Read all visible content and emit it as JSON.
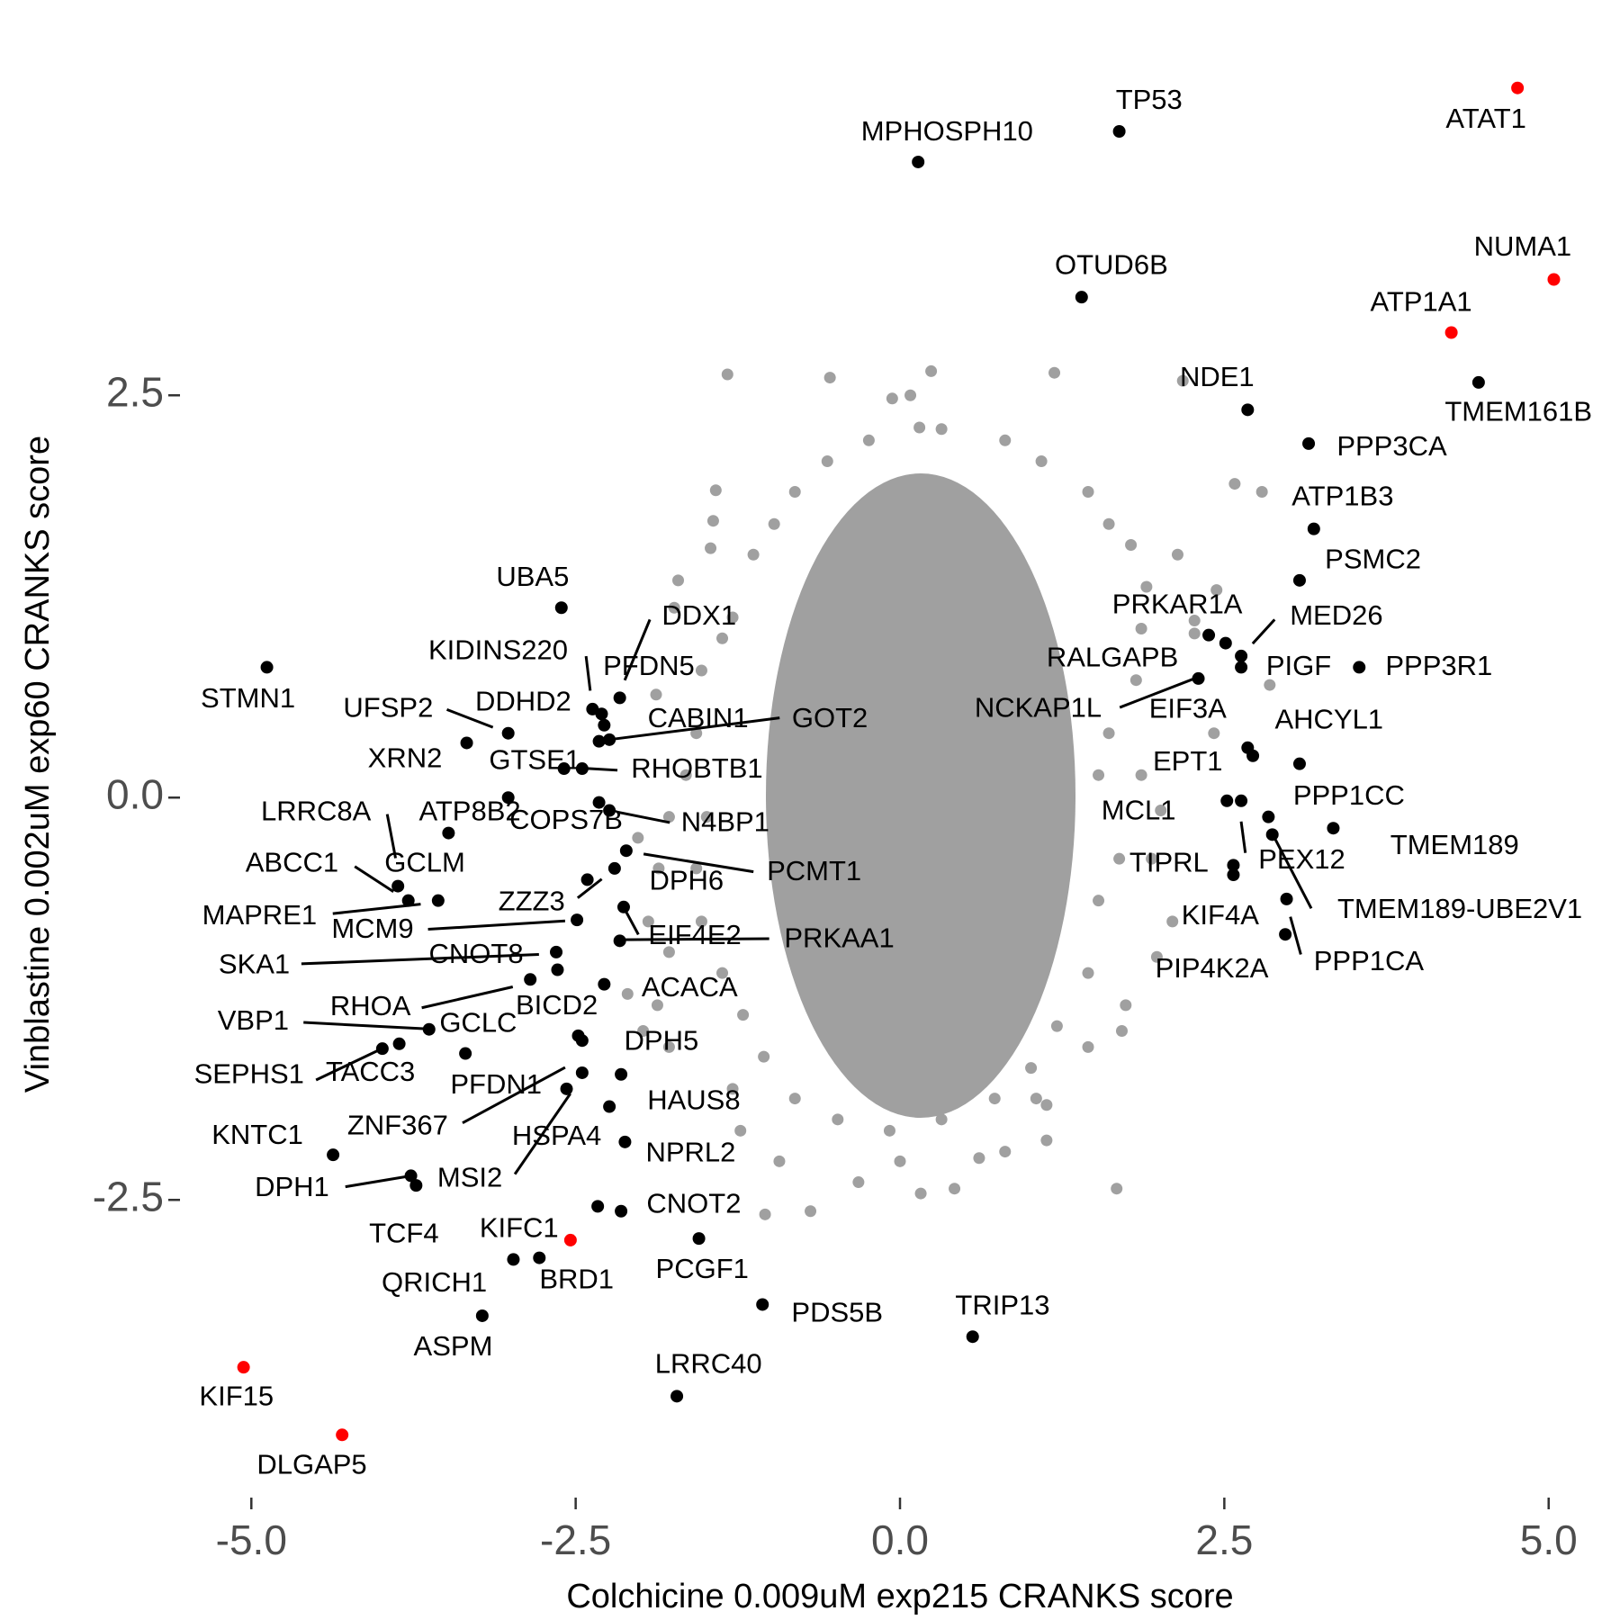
{
  "chart_data": {
    "type": "scatter",
    "x_label": "Colchicine 0.009uM exp215 CRANKS score",
    "y_label": "Vinblastine 0.002uM exp60 CRANKS score",
    "xlim": [
      -5.55,
      5.55
    ],
    "ylim": [
      -4.35,
      4.8
    ],
    "xticks": [
      {
        "value": -5,
        "label": "-5.0"
      },
      -2.5,
      {
        "value": 0,
        "label": "0.0"
      },
      2.5,
      {
        "value": 5,
        "label": "5.0"
      }
    ],
    "yticks": [
      -2.5,
      {
        "value": 0,
        "label": "0.0"
      },
      2.5
    ],
    "background": {
      "color": "#a0a0a0",
      "x": [
        -1.33,
        -0.54,
        0.24,
        1.19,
        -0.06,
        0.08,
        0.15,
        2.18,
        2.58,
        2.79,
        -1.42,
        -1.44,
        -1.46,
        -1.71,
        -1.74,
        -1.88,
        2.14,
        2.27,
        2.44,
        2.27,
        2.85,
        2.42,
        2.01,
        1.94,
        2.1,
        1.98,
        1.74,
        1.71,
        1.45,
        1.05,
        1.67,
        0.61,
        0.42,
        0,
        -0.32,
        -0.69,
        -1.04,
        -0.93,
        -1.23,
        -1.29,
        -1.78,
        -1.98,
        -1.87,
        -2.1,
        -1.78,
        -1.94,
        -1.86,
        -2.02,
        -1.78,
        -1.65,
        -1.57,
        -1.53,
        -1.37,
        -1.29,
        -1.13,
        -0.97,
        -0.81,
        -0.56,
        -0.24,
        0.32,
        0.81,
        1.09,
        1.45,
        1.61,
        1.78,
        1.9,
        1.86,
        1.82,
        1.61,
        1.53,
        1.86,
        1.69,
        1.53,
        1.45,
        1.21,
        1.01,
        0.73,
        0.32,
        -0.08,
        -0.48,
        -0.81,
        -1.05,
        -1.21,
        -1.37,
        -1.53,
        -1.57,
        -1.49,
        1.13,
        0.16,
        0.81,
        1.13
      ],
      "y": [
        2.63,
        2.61,
        2.65,
        2.64,
        2.48,
        2.5,
        2.3,
        2.59,
        1.95,
        1.9,
        1.91,
        1.72,
        1.55,
        1.35,
        1.18,
        0.64,
        1.51,
        1.1,
        1.29,
        1.02,
        0.7,
        0.4,
        -0.08,
        -0.38,
        -0.77,
        -0.99,
        -1.29,
        -1.45,
        -1.55,
        -1.87,
        -2.43,
        -2.24,
        -2.43,
        -2.26,
        -2.39,
        -2.57,
        -2.59,
        -2.26,
        -2.07,
        -1.81,
        -1.55,
        -1.45,
        -1.29,
        -1.22,
        -0.96,
        -0.77,
        -0.44,
        -0.25,
        -0.12,
        0.14,
        0.4,
        0.79,
        0.99,
        1.12,
        1.51,
        1.7,
        1.9,
        2.09,
        2.22,
        2.29,
        2.22,
        2.09,
        1.9,
        1.7,
        1.57,
        1.31,
        1.05,
        0.73,
        0.4,
        0.14,
        0.14,
        -0.38,
        -0.64,
        -1.09,
        -1.42,
        -1.68,
        -1.87,
        -2,
        -2.07,
        -2,
        -1.87,
        -1.61,
        -1.35,
        -1.09,
        -0.77,
        -0.44,
        -0.12,
        -2.13,
        -2.46,
        -2.2,
        -1.91
      ]
    },
    "labeled": [
      {
        "label": "ATAT1",
        "x": 4.76,
        "y": 4.41,
        "color": "#ff0000"
      },
      {
        "label": "TP53",
        "x": 1.69,
        "y": 4.14,
        "color": "#000000"
      },
      {
        "label": "MPHOSPH10",
        "x": 0.14,
        "y": 3.95,
        "color": "#000000"
      },
      {
        "label": "OTUD6B",
        "x": 1.4,
        "y": 3.11,
        "color": "#000000"
      },
      {
        "label": "NUMA1",
        "x": 5.04,
        "y": 3.22,
        "color": "#ff0000"
      },
      {
        "label": "ATP1A1",
        "x": 4.25,
        "y": 2.89,
        "color": "#ff0000"
      },
      {
        "label": "TMEM161B",
        "x": 4.46,
        "y": 2.58,
        "color": "#000000"
      },
      {
        "label": "NDE1",
        "x": 2.68,
        "y": 2.41,
        "color": "#000000"
      },
      {
        "label": "PPP3CA",
        "x": 3.15,
        "y": 2.2,
        "color": "#000000"
      },
      {
        "label": "ATP1B3",
        "x": 3.19,
        "y": 1.67,
        "color": "#000000"
      },
      {
        "label": "PSMC2",
        "x": 3.08,
        "y": 1.35,
        "color": "#000000"
      },
      {
        "label": "PRKAR1A",
        "x": 2.38,
        "y": 1.01,
        "color": "#000000"
      },
      {
        "label": "MED26",
        "x": 2.63,
        "y": 0.88,
        "color": "#000000"
      },
      {
        "label": "RALGAPB",
        "x": 2.51,
        "y": 0.96,
        "color": "#000000"
      },
      {
        "label": "PIGF",
        "x": 2.63,
        "y": 0.81,
        "color": "#000000"
      },
      {
        "label": "PPP3R1",
        "x": 3.54,
        "y": 0.81,
        "color": "#000000"
      },
      {
        "label": "NCKAP1L",
        "x": 2.3,
        "y": 0.74,
        "color": "#000000"
      },
      {
        "label": "EIF3A",
        "x": 2.68,
        "y": 0.31,
        "color": "#000000"
      },
      {
        "label": "AHCYL1",
        "x": 3.08,
        "y": 0.21,
        "color": "#000000"
      },
      {
        "label": "EPT1",
        "x": 2.72,
        "y": 0.26,
        "color": "#000000"
      },
      {
        "label": "PPP1CC",
        "x": 2.84,
        "y": -0.12,
        "color": "#000000"
      },
      {
        "label": "TMEM189",
        "x": 3.34,
        "y": -0.19,
        "color": "#000000"
      },
      {
        "label": "MCL1",
        "x": 2.52,
        "y": -0.02,
        "color": "#000000"
      },
      {
        "label": "TIPRL",
        "x": 2.57,
        "y": -0.42,
        "color": "#000000"
      },
      {
        "label": "PEX12",
        "x": 2.63,
        "y": -0.02,
        "color": "#000000"
      },
      {
        "label": "TMEM189-UBE2V1",
        "x": 2.87,
        "y": -0.23,
        "color": "#000000"
      },
      {
        "label": "KIF4A",
        "x": 2.57,
        "y": -0.48,
        "color": "#000000"
      },
      {
        "label": "PIP4K2A",
        "x": 2.98,
        "y": -0.63,
        "color": "#000000"
      },
      {
        "label": "PPP1CA",
        "x": 2.97,
        "y": -0.85,
        "color": "#000000"
      },
      {
        "label": "UBA5",
        "x": -2.61,
        "y": 1.18,
        "color": "#000000"
      },
      {
        "label": "STMN1",
        "x": -4.88,
        "y": 0.81,
        "color": "#000000"
      },
      {
        "label": "DDX1",
        "x": -2.16,
        "y": 0.62,
        "color": "#000000"
      },
      {
        "label": "KIDINS220",
        "x": -2.37,
        "y": 0.55,
        "color": "#000000"
      },
      {
        "label": "PFDN5",
        "x": -2.3,
        "y": 0.52,
        "color": "#000000"
      },
      {
        "label": "UFSP2",
        "x": -3.02,
        "y": 0.4,
        "color": "#000000"
      },
      {
        "label": "DDHD2",
        "x": -2.28,
        "y": 0.45,
        "color": "#000000"
      },
      {
        "label": "CABIN1",
        "x": -2.32,
        "y": 0.35,
        "color": "#000000"
      },
      {
        "label": "GOT2",
        "x": -2.24,
        "y": 0.36,
        "color": "#000000"
      },
      {
        "label": "XRN2",
        "x": -3.34,
        "y": 0.34,
        "color": "#000000"
      },
      {
        "label": "GTSE1",
        "x": -2.59,
        "y": 0.18,
        "color": "#000000"
      },
      {
        "label": "RHOBTB1",
        "x": -2.45,
        "y": 0.18,
        "color": "#000000"
      },
      {
        "label": "LRRC8A",
        "x": -3.87,
        "y": -0.55,
        "color": "#000000"
      },
      {
        "label": "ATP8B2",
        "x": -3.02,
        "y": 0.0,
        "color": "#000000"
      },
      {
        "label": "COPS7B",
        "x": -2.32,
        "y": -0.03,
        "color": "#000000"
      },
      {
        "label": "N4BP1",
        "x": -2.24,
        "y": -0.08,
        "color": "#000000"
      },
      {
        "label": "GCLM",
        "x": -3.48,
        "y": -0.22,
        "color": "#000000"
      },
      {
        "label": "ABCC1",
        "x": -3.79,
        "y": -0.64,
        "color": "#000000"
      },
      {
        "label": "PCMT1",
        "x": -2.11,
        "y": -0.33,
        "color": "#000000"
      },
      {
        "label": "DPH6",
        "x": -2.2,
        "y": -0.44,
        "color": "#000000"
      },
      {
        "label": "ZZZ3",
        "x": -2.41,
        "y": -0.51,
        "color": "#000000"
      },
      {
        "label": "MAPRE1",
        "x": -3.56,
        "y": -0.64,
        "color": "#000000"
      },
      {
        "label": "MCM9",
        "x": -2.49,
        "y": -0.76,
        "color": "#000000"
      },
      {
        "label": "EIF4E2",
        "x": -2.13,
        "y": -0.68,
        "color": "#000000"
      },
      {
        "label": "PRKAA1",
        "x": -2.16,
        "y": -0.89,
        "color": "#000000"
      },
      {
        "label": "SKA1",
        "x": -2.65,
        "y": -0.96,
        "color": "#000000"
      },
      {
        "label": "CNOT8",
        "x": -2.64,
        "y": -1.07,
        "color": "#000000"
      },
      {
        "label": "ACACA",
        "x": -2.28,
        "y": -1.16,
        "color": "#000000"
      },
      {
        "label": "RHOA",
        "x": -2.85,
        "y": -1.13,
        "color": "#000000"
      },
      {
        "label": "BICD2",
        "x": -2.48,
        "y": -1.48,
        "color": "#000000"
      },
      {
        "label": "GCLC",
        "x": -3.35,
        "y": -1.59,
        "color": "#000000"
      },
      {
        "label": "VBP1",
        "x": -3.63,
        "y": -1.44,
        "color": "#000000"
      },
      {
        "label": "DPH5",
        "x": -2.45,
        "y": -1.51,
        "color": "#000000"
      },
      {
        "label": "SEPHS1",
        "x": -3.99,
        "y": -1.56,
        "color": "#000000"
      },
      {
        "label": "TACC3",
        "x": -3.86,
        "y": -1.53,
        "color": "#000000"
      },
      {
        "label": "PFDN1",
        "x": -2.45,
        "y": -1.71,
        "color": "#000000"
      },
      {
        "label": "HAUS8",
        "x": -2.24,
        "y": -1.92,
        "color": "#000000"
      },
      {
        "label": "ZNF367",
        "x": -2.57,
        "y": -1.81,
        "color": "#000000"
      },
      {
        "label": "HSPA4",
        "x": -2.15,
        "y": -1.72,
        "color": "#000000"
      },
      {
        "label": "KNTC1",
        "x": -4.37,
        "y": -2.22,
        "color": "#000000"
      },
      {
        "label": "NPRL2",
        "x": -2.12,
        "y": -2.14,
        "color": "#000000"
      },
      {
        "label": "DPH1",
        "x": -3.77,
        "y": -2.35,
        "color": "#000000"
      },
      {
        "label": "MSI2",
        "x": -3.73,
        "y": -2.41,
        "color": "#000000"
      },
      {
        "label": "TCF4",
        "x": -2.33,
        "y": -2.54,
        "color": "#000000"
      },
      {
        "label": "CNOT2",
        "x": -2.15,
        "y": -2.57,
        "color": "#000000"
      },
      {
        "label": "KIFC1",
        "x": -2.54,
        "y": -2.75,
        "color": "#ff0000"
      },
      {
        "label": "PCGF1",
        "x": -1.55,
        "y": -2.74,
        "color": "#000000"
      },
      {
        "label": "BRD1",
        "x": -2.78,
        "y": -2.86,
        "color": "#000000"
      },
      {
        "label": "QRICH1",
        "x": -2.98,
        "y": -2.87,
        "color": "#000000"
      },
      {
        "label": "ASPM",
        "x": -3.22,
        "y": -3.22,
        "color": "#000000"
      },
      {
        "label": "PDS5B",
        "x": -1.06,
        "y": -3.15,
        "color": "#000000"
      },
      {
        "label": "TRIP13",
        "x": 0.56,
        "y": -3.35,
        "color": "#000000"
      },
      {
        "label": "LRRC40",
        "x": -1.72,
        "y": -3.72,
        "color": "#000000"
      },
      {
        "label": "KIF15",
        "x": -5.06,
        "y": -3.54,
        "color": "#ff0000"
      },
      {
        "label": "DLGAP5",
        "x": -4.3,
        "y": -3.96,
        "color": "#ff0000"
      }
    ]
  }
}
